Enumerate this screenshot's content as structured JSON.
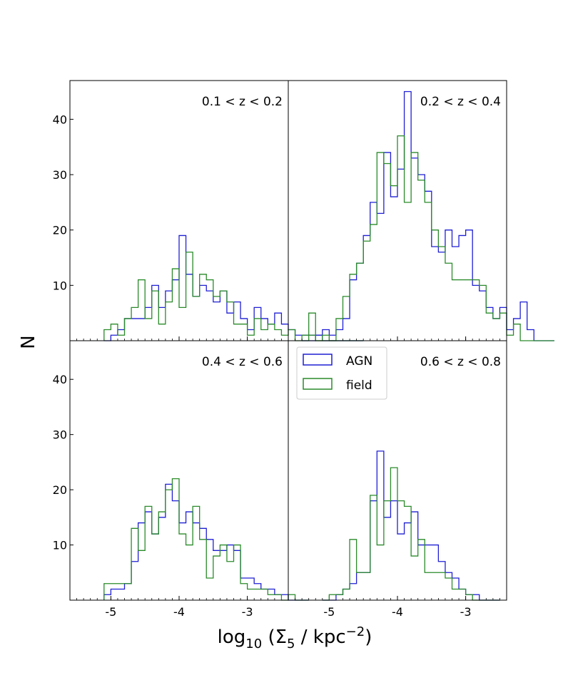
{
  "chart_data": {
    "type": "histogram",
    "xlabel": "log",
    "xlabel_sub": "10",
    "xlabel_mid": " (Σ",
    "xlabel_sub2": "5",
    "xlabel_mid2": " / kpc",
    "xlabel_sup": "−2",
    "xlabel_end": ")",
    "ylabel": "N",
    "xlim": [
      -5.6,
      -2.4
    ],
    "ylim": [
      0,
      47
    ],
    "xticks": [
      -5,
      -4,
      -3
    ],
    "xtick_labels": [
      "-5",
      "-4",
      "-3"
    ],
    "yticks": [
      10,
      20,
      30,
      40
    ],
    "ytick_labels": [
      "10",
      "20",
      "30",
      "40"
    ],
    "bin_width": 0.1,
    "legend": {
      "location": "upper-left of bottom-right panel",
      "entries": [
        {
          "name": "AGN",
          "color": "#1f1fd4"
        },
        {
          "name": "field",
          "color": "#2a8a2a"
        }
      ]
    },
    "panels": [
      {
        "label": "0.1 < z < 0.2",
        "series": [
          {
            "name": "AGN",
            "color": "#1f1fd4",
            "start": -5.1,
            "values": [
              0,
              1,
              2,
              4,
              4,
              4,
              6,
              10,
              6,
              9,
              11,
              19,
              12,
              8,
              10,
              9,
              7,
              9,
              5,
              7,
              4,
              2,
              6,
              4,
              3,
              5,
              3,
              2,
              1,
              1,
              1,
              1,
              0,
              0,
              0,
              0,
              0,
              0
            ]
          },
          {
            "name": "field",
            "color": "#2a8a2a",
            "start": -5.1,
            "values": [
              2,
              3,
              1,
              4,
              6,
              11,
              4,
              9,
              3,
              7,
              13,
              6,
              16,
              8,
              12,
              11,
              8,
              9,
              7,
              3,
              3,
              1,
              4,
              2,
              3,
              2,
              1,
              2,
              0,
              1,
              5,
              0,
              0,
              0,
              0,
              0,
              0,
              0
            ]
          }
        ]
      },
      {
        "label": "0.2 < z < 0.4",
        "series": [
          {
            "name": "AGN",
            "color": "#1f1fd4",
            "start": -5.4,
            "values": [
              0,
              0,
              1,
              2,
              1,
              2,
              4,
              11,
              14,
              19,
              25,
              23,
              34,
              26,
              31,
              45,
              33,
              30,
              27,
              17,
              16,
              20,
              17,
              19,
              20,
              10,
              9,
              6,
              4,
              6,
              2,
              4,
              7,
              2,
              0,
              0,
              0
            ]
          },
          {
            "name": "field",
            "color": "#2a8a2a",
            "start": -5.4,
            "values": [
              0,
              1,
              0,
              1,
              0,
              4,
              8,
              12,
              14,
              18,
              21,
              34,
              32,
              28,
              37,
              25,
              34,
              29,
              25,
              20,
              17,
              14,
              11,
              11,
              11,
              11,
              10,
              5,
              4,
              5,
              1,
              3,
              0,
              0,
              0,
              0,
              0
            ]
          }
        ]
      },
      {
        "label": "0.4 < z < 0.6",
        "series": [
          {
            "name": "AGN",
            "color": "#1f1fd4",
            "start": -5.1,
            "values": [
              1,
              2,
              2,
              3,
              7,
              14,
              16,
              12,
              15,
              21,
              18,
              14,
              16,
              14,
              13,
              11,
              9,
              9,
              10,
              9,
              4,
              4,
              3,
              2,
              2,
              1,
              1,
              0,
              0,
              0
            ]
          },
          {
            "name": "field",
            "color": "#2a8a2a",
            "start": -5.1,
            "values": [
              3,
              3,
              3,
              3,
              13,
              9,
              17,
              12,
              16,
              20,
              22,
              12,
              10,
              17,
              11,
              4,
              8,
              10,
              7,
              10,
              3,
              2,
              2,
              2,
              1,
              1,
              0,
              1,
              0,
              0
            ]
          }
        ]
      },
      {
        "label": "0.6 < z < 0.8",
        "series": [
          {
            "name": "AGN",
            "color": "#1f1fd4",
            "start": -5.1,
            "values": [
              0,
              0,
              1,
              2,
              3,
              5,
              5,
              18,
              27,
              15,
              18,
              12,
              14,
              16,
              10,
              10,
              10,
              7,
              5,
              4,
              2,
              1,
              1,
              0,
              0,
              0
            ]
          },
          {
            "name": "field",
            "color": "#2a8a2a",
            "start": -5.1,
            "values": [
              0,
              1,
              1,
              2,
              11,
              5,
              5,
              19,
              10,
              18,
              24,
              18,
              17,
              8,
              11,
              5,
              5,
              5,
              4,
              2,
              2,
              1,
              0,
              0,
              0,
              0
            ]
          }
        ]
      }
    ]
  }
}
